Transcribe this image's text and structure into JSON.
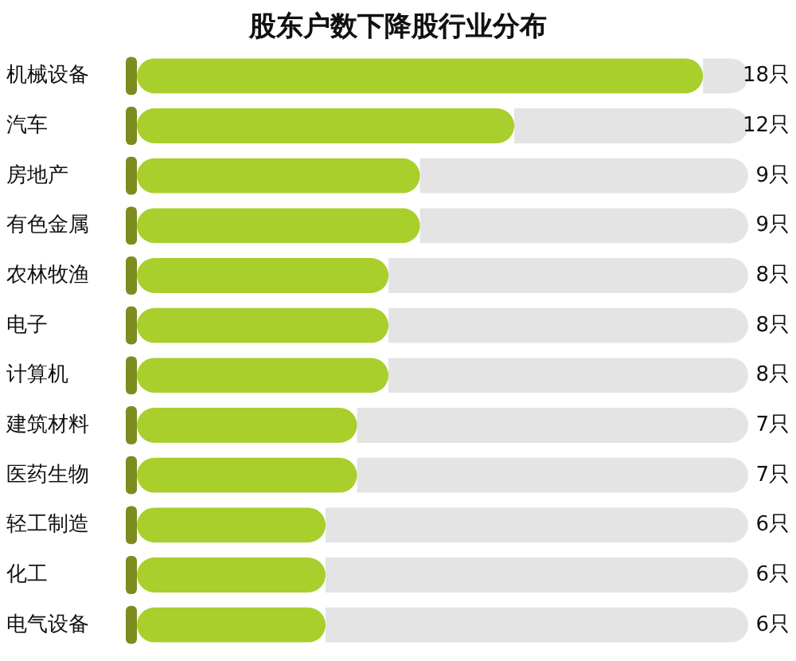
{
  "chart_data": {
    "type": "bar",
    "orientation": "horizontal",
    "title": "股东户数下降股行业分布",
    "categories": [
      "机械设备",
      "汽车",
      "房地产",
      "有色金属",
      "农林牧渔",
      "电子",
      "计算机",
      "建筑材料",
      "医药生物",
      "轻工制造",
      "化工",
      "电气设备"
    ],
    "values": [
      18,
      12,
      9,
      9,
      8,
      8,
      8,
      7,
      7,
      6,
      6,
      6
    ],
    "value_labels": [
      "18只",
      "12只",
      "9只",
      "9只",
      "8只",
      "8只",
      "8只",
      "7只",
      "7只",
      "6只",
      "6只",
      "6只"
    ],
    "color": "#a8cf2c"
  }
}
